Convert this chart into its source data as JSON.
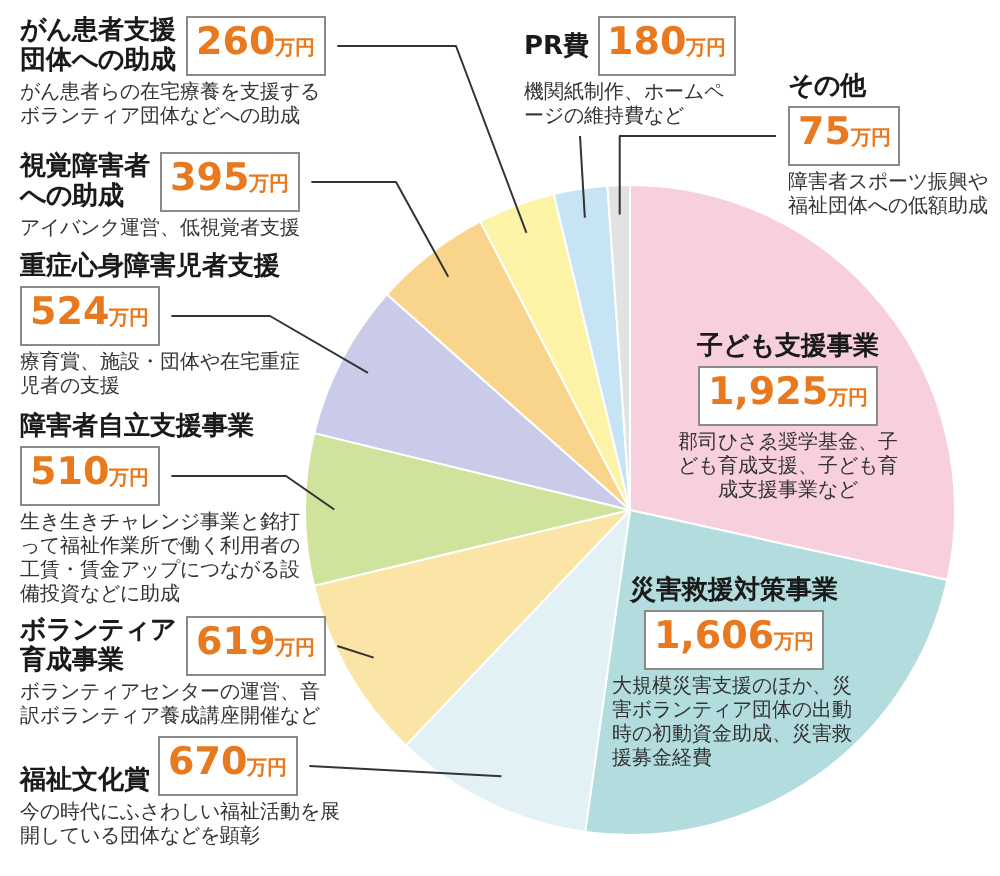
{
  "chart_data": {
    "type": "pie",
    "categories": [
      "子ども支援事業",
      "災害救援対策事業",
      "福祉文化賞",
      "ボランティア育成事業",
      "障害者自立支援事業",
      "重症心身障害児者支援",
      "視覚障害者への助成",
      "がん患者支援団体への助成",
      "PR費",
      "その他"
    ],
    "values": [
      1925,
      1606,
      670,
      619,
      510,
      524,
      395,
      260,
      180,
      75
    ],
    "colors": [
      "#f8cfdc",
      "#b3dcdf",
      "#e2f1f5",
      "#fae5a6",
      "#cfe39d",
      "#cacbe8",
      "#f9d58c",
      "#fdf3a6",
      "#c7e4f4",
      "#e2e2e2"
    ],
    "value_labels": [
      "1,925万円",
      "1,606万円",
      "670万円",
      "619万円",
      "510万円",
      "524万円",
      "395万円",
      "260万円",
      "180万円",
      "75万円"
    ],
    "annotations": [
      "郡司ひさゑ奨学基金、子ども育成支援、子ども育成支援事業など",
      "大規模災害支援のほか、災害ボランティア団体の出動時の初動資金助成、災害救援募金経費",
      "今の時代にふさわしい福祉活動を展開している団体などを顕彰",
      "ボランティアセンターの運営、音訳ボランティア養成講座開催など",
      "生き生きチャレンジ事業と銘打って福祉作業所で働く利用者の工賃・賃金アップにつながる設備投資などに助成",
      "療育賞、施設・団体や在宅重症児者の支援",
      "アイバンク運営、低視覚者支援",
      "がん患者らの在宅療養を支援するボランティア団体などへの助成",
      "機関紙制作、ホームページの維持費など",
      "障害者スポーツ振興や福祉団体への低額助成"
    ]
  }
}
